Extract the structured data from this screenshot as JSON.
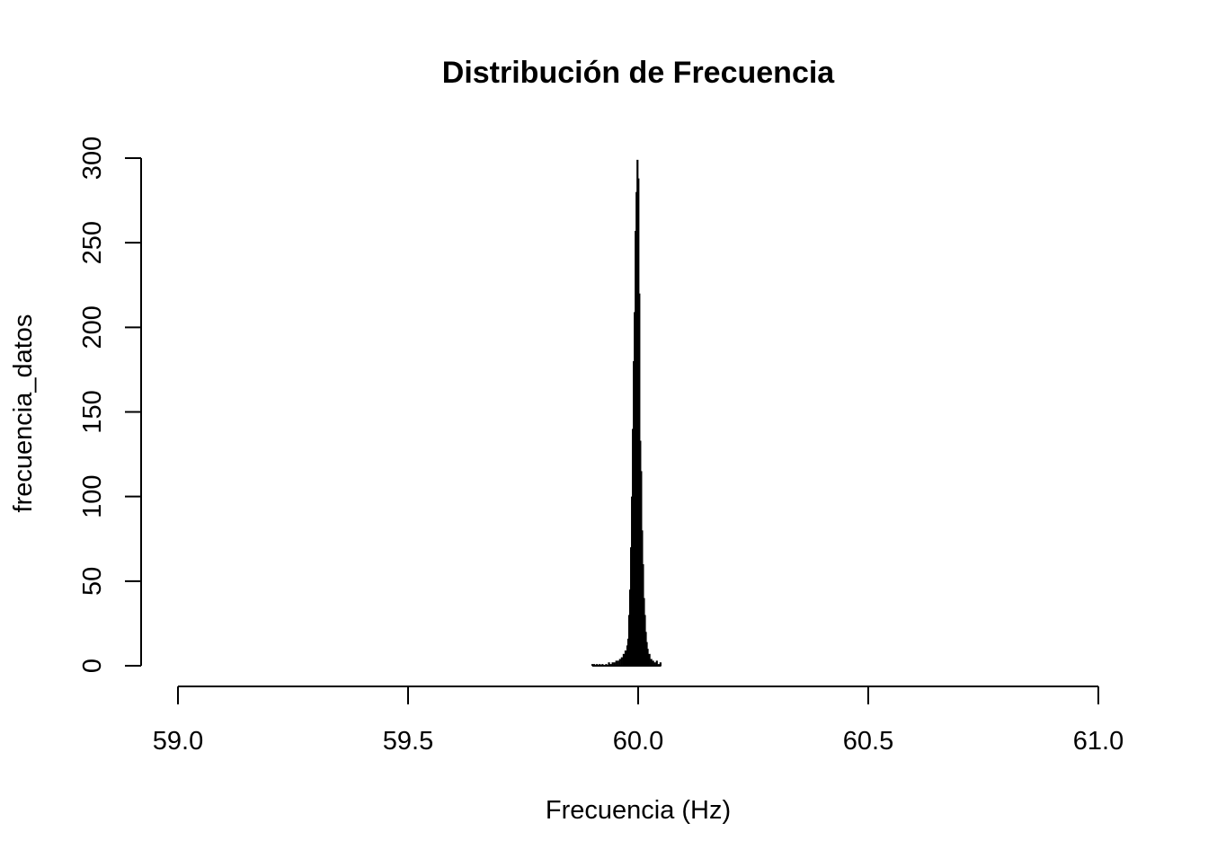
{
  "chart_data": {
    "type": "bar",
    "title": "Distribución de Frecuencia",
    "xlabel": "Frecuencia (Hz)",
    "ylabel": "frecuencia_datos",
    "xlim": [
      59.0,
      61.0
    ],
    "ylim": [
      0,
      300
    ],
    "xticks": [
      "59.0",
      "59.5",
      "60.0",
      "60.5",
      "61.0"
    ],
    "yticks": [
      "0",
      "50",
      "100",
      "150",
      "200",
      "250",
      "300"
    ],
    "grid": false,
    "color": "#000000",
    "x": [
      59.9,
      59.904,
      59.91,
      59.916,
      59.922,
      59.93,
      59.936,
      59.94,
      59.944,
      59.948,
      59.952,
      59.956,
      59.96,
      59.964,
      59.968,
      59.972,
      59.976,
      59.978,
      59.98,
      59.982,
      59.984,
      59.986,
      59.988,
      59.99,
      59.992,
      59.994,
      59.996,
      59.998,
      60.0,
      60.002,
      60.004,
      60.006,
      60.008,
      60.01,
      60.012,
      60.014,
      60.016,
      60.018,
      60.02,
      60.024,
      60.028,
      60.032,
      60.036,
      60.04,
      60.044,
      60.048
    ],
    "values": [
      1,
      1,
      1,
      1,
      1,
      1,
      2,
      1,
      2,
      2,
      3,
      3,
      4,
      5,
      7,
      9,
      12,
      16,
      30,
      45,
      70,
      100,
      140,
      180,
      209,
      257,
      280,
      299,
      288,
      220,
      133,
      115,
      80,
      60,
      40,
      30,
      20,
      14,
      10,
      7,
      4,
      3,
      2,
      3,
      1,
      2
    ]
  }
}
